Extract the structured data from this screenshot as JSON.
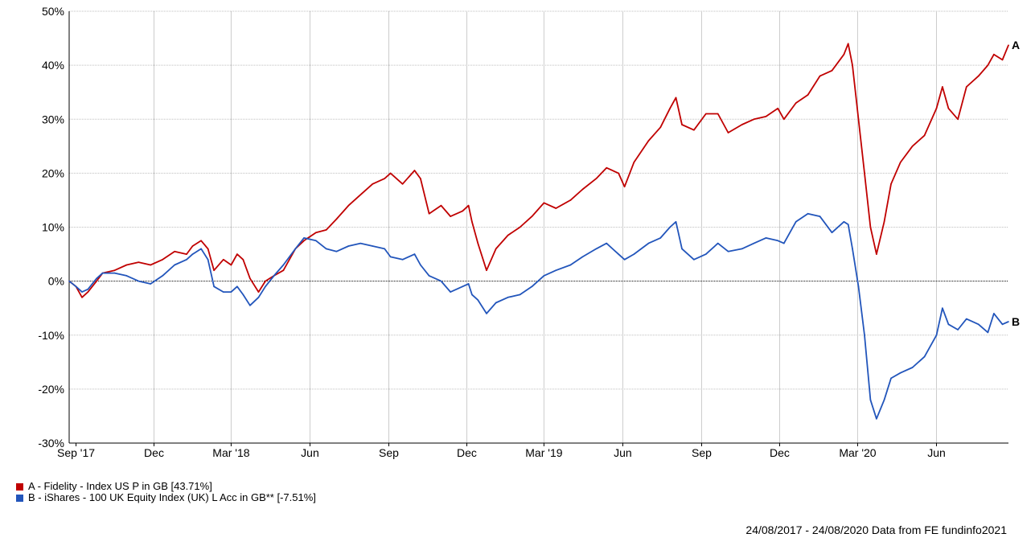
{
  "chart_data": {
    "type": "line",
    "title": "",
    "xlabel": "",
    "ylabel": "",
    "ylim": [
      -30,
      50
    ],
    "y_ticks": [
      50,
      40,
      30,
      20,
      10,
      0,
      -10,
      -20,
      -30
    ],
    "y_tick_labels": [
      "50%",
      "40%",
      "30%",
      "20%",
      "10%",
      "0%",
      "-10%",
      "-20%",
      "-30%"
    ],
    "x_range": [
      "2017-08-24",
      "2020-08-24"
    ],
    "x_ticks": [
      {
        "date": "2017-09-01",
        "label": "Sep '17"
      },
      {
        "date": "2017-12-01",
        "label": "Dec"
      },
      {
        "date": "2018-03-01",
        "label": "Mar '18"
      },
      {
        "date": "2018-06-01",
        "label": "Jun"
      },
      {
        "date": "2018-09-01",
        "label": "Sep"
      },
      {
        "date": "2018-12-01",
        "label": "Dec"
      },
      {
        "date": "2019-03-01",
        "label": "Mar '19"
      },
      {
        "date": "2019-06-01",
        "label": "Jun"
      },
      {
        "date": "2019-09-01",
        "label": "Sep"
      },
      {
        "date": "2019-12-01",
        "label": "Dec"
      },
      {
        "date": "2020-03-01",
        "label": "Mar '20"
      },
      {
        "date": "2020-06-01",
        "label": "Jun"
      }
    ],
    "grid": true,
    "zero_line": true,
    "series": [
      {
        "name": "A - Fidelity - Index US P in GB [43.71%]",
        "end_label": "A",
        "color": "#c00000",
        "points": [
          [
            "2017-08-24",
            0
          ],
          [
            "2017-09-01",
            -1
          ],
          [
            "2017-09-08",
            -3
          ],
          [
            "2017-09-15",
            -2
          ],
          [
            "2017-09-25",
            0
          ],
          [
            "2017-10-02",
            1.5
          ],
          [
            "2017-10-16",
            2
          ],
          [
            "2017-10-30",
            3
          ],
          [
            "2017-11-13",
            3.5
          ],
          [
            "2017-11-27",
            3
          ],
          [
            "2017-12-11",
            4
          ],
          [
            "2017-12-25",
            5.5
          ],
          [
            "2018-01-08",
            5
          ],
          [
            "2018-01-15",
            6.5
          ],
          [
            "2018-01-25",
            7.5
          ],
          [
            "2018-02-02",
            6
          ],
          [
            "2018-02-09",
            2
          ],
          [
            "2018-02-20",
            4
          ],
          [
            "2018-03-01",
            3
          ],
          [
            "2018-03-08",
            5
          ],
          [
            "2018-03-15",
            4
          ],
          [
            "2018-03-23",
            0.5
          ],
          [
            "2018-04-02",
            -2
          ],
          [
            "2018-04-10",
            0
          ],
          [
            "2018-04-20",
            1
          ],
          [
            "2018-05-01",
            2
          ],
          [
            "2018-05-15",
            6
          ],
          [
            "2018-05-25",
            7.5
          ],
          [
            "2018-06-08",
            9
          ],
          [
            "2018-06-20",
            9.5
          ],
          [
            "2018-07-02",
            11.5
          ],
          [
            "2018-07-16",
            14
          ],
          [
            "2018-07-30",
            16
          ],
          [
            "2018-08-13",
            18
          ],
          [
            "2018-08-27",
            19
          ],
          [
            "2018-09-03",
            20
          ],
          [
            "2018-09-17",
            18
          ],
          [
            "2018-10-01",
            20.5
          ],
          [
            "2018-10-08",
            19
          ],
          [
            "2018-10-18",
            12.5
          ],
          [
            "2018-11-01",
            14
          ],
          [
            "2018-11-12",
            12
          ],
          [
            "2018-11-26",
            13
          ],
          [
            "2018-12-03",
            14
          ],
          [
            "2018-12-07",
            11
          ],
          [
            "2018-12-14",
            7
          ],
          [
            "2018-12-24",
            2
          ],
          [
            "2019-01-04",
            6
          ],
          [
            "2019-01-18",
            8.5
          ],
          [
            "2019-02-01",
            10
          ],
          [
            "2019-02-15",
            12
          ],
          [
            "2019-03-01",
            14.5
          ],
          [
            "2019-03-15",
            13.5
          ],
          [
            "2019-04-01",
            15
          ],
          [
            "2019-04-15",
            17
          ],
          [
            "2019-05-01",
            19
          ],
          [
            "2019-05-13",
            21
          ],
          [
            "2019-05-27",
            20
          ],
          [
            "2019-06-03",
            17.5
          ],
          [
            "2019-06-14",
            22
          ],
          [
            "2019-07-01",
            26
          ],
          [
            "2019-07-15",
            28.5
          ],
          [
            "2019-07-26",
            32
          ],
          [
            "2019-08-02",
            34
          ],
          [
            "2019-08-09",
            29
          ],
          [
            "2019-08-23",
            28
          ],
          [
            "2019-09-06",
            31
          ],
          [
            "2019-09-20",
            31
          ],
          [
            "2019-10-02",
            27.5
          ],
          [
            "2019-10-18",
            29
          ],
          [
            "2019-11-01",
            30
          ],
          [
            "2019-11-15",
            30.5
          ],
          [
            "2019-11-29",
            32
          ],
          [
            "2019-12-06",
            30
          ],
          [
            "2019-12-20",
            33
          ],
          [
            "2020-01-03",
            34.5
          ],
          [
            "2020-01-17",
            38
          ],
          [
            "2020-01-31",
            39
          ],
          [
            "2020-02-14",
            42
          ],
          [
            "2020-02-19",
            44
          ],
          [
            "2020-02-24",
            40
          ],
          [
            "2020-03-02",
            30
          ],
          [
            "2020-03-09",
            20
          ],
          [
            "2020-03-16",
            10
          ],
          [
            "2020-03-23",
            5
          ],
          [
            "2020-04-01",
            11
          ],
          [
            "2020-04-09",
            18
          ],
          [
            "2020-04-20",
            22
          ],
          [
            "2020-05-04",
            25
          ],
          [
            "2020-05-18",
            27
          ],
          [
            "2020-06-01",
            32
          ],
          [
            "2020-06-08",
            36
          ],
          [
            "2020-06-15",
            32
          ],
          [
            "2020-06-26",
            30
          ],
          [
            "2020-07-06",
            36
          ],
          [
            "2020-07-20",
            38
          ],
          [
            "2020-07-31",
            40
          ],
          [
            "2020-08-07",
            42
          ],
          [
            "2020-08-17",
            41
          ],
          [
            "2020-08-24",
            43.71
          ]
        ]
      },
      {
        "name": "B - iShares - 100 UK Equity Index (UK) L Acc in GB** [-7.51%]",
        "end_label": "B",
        "color": "#2255bb",
        "points": [
          [
            "2017-08-24",
            0
          ],
          [
            "2017-09-01",
            -1
          ],
          [
            "2017-09-08",
            -2
          ],
          [
            "2017-09-15",
            -1.5
          ],
          [
            "2017-09-25",
            0.5
          ],
          [
            "2017-10-02",
            1.5
          ],
          [
            "2017-10-16",
            1.5
          ],
          [
            "2017-10-30",
            1
          ],
          [
            "2017-11-13",
            0
          ],
          [
            "2017-11-27",
            -0.5
          ],
          [
            "2017-12-11",
            1
          ],
          [
            "2017-12-25",
            3
          ],
          [
            "2018-01-08",
            4
          ],
          [
            "2018-01-15",
            5
          ],
          [
            "2018-01-25",
            6
          ],
          [
            "2018-02-02",
            4
          ],
          [
            "2018-02-09",
            -1
          ],
          [
            "2018-02-20",
            -2
          ],
          [
            "2018-03-01",
            -2
          ],
          [
            "2018-03-08",
            -1
          ],
          [
            "2018-03-15",
            -2.5
          ],
          [
            "2018-03-23",
            -4.5
          ],
          [
            "2018-04-02",
            -3
          ],
          [
            "2018-04-10",
            -1
          ],
          [
            "2018-04-20",
            1
          ],
          [
            "2018-05-01",
            3
          ],
          [
            "2018-05-15",
            6
          ],
          [
            "2018-05-25",
            8
          ],
          [
            "2018-06-08",
            7.5
          ],
          [
            "2018-06-20",
            6
          ],
          [
            "2018-07-02",
            5.5
          ],
          [
            "2018-07-16",
            6.5
          ],
          [
            "2018-07-30",
            7
          ],
          [
            "2018-08-13",
            6.5
          ],
          [
            "2018-08-27",
            6
          ],
          [
            "2018-09-03",
            4.5
          ],
          [
            "2018-09-17",
            4
          ],
          [
            "2018-10-01",
            5
          ],
          [
            "2018-10-08",
            3
          ],
          [
            "2018-10-18",
            1
          ],
          [
            "2018-11-01",
            0
          ],
          [
            "2018-11-12",
            -2
          ],
          [
            "2018-11-26",
            -1
          ],
          [
            "2018-12-03",
            -0.5
          ],
          [
            "2018-12-07",
            -2.5
          ],
          [
            "2018-12-14",
            -3.5
          ],
          [
            "2018-12-24",
            -6
          ],
          [
            "2019-01-04",
            -4
          ],
          [
            "2019-01-18",
            -3
          ],
          [
            "2019-02-01",
            -2.5
          ],
          [
            "2019-02-15",
            -1
          ],
          [
            "2019-03-01",
            1
          ],
          [
            "2019-03-15",
            2
          ],
          [
            "2019-04-01",
            3
          ],
          [
            "2019-04-15",
            4.5
          ],
          [
            "2019-05-01",
            6
          ],
          [
            "2019-05-13",
            7
          ],
          [
            "2019-05-27",
            5
          ],
          [
            "2019-06-03",
            4
          ],
          [
            "2019-06-14",
            5
          ],
          [
            "2019-07-01",
            7
          ],
          [
            "2019-07-15",
            8
          ],
          [
            "2019-07-26",
            10
          ],
          [
            "2019-08-02",
            11
          ],
          [
            "2019-08-09",
            6
          ],
          [
            "2019-08-23",
            4
          ],
          [
            "2019-09-06",
            5
          ],
          [
            "2019-09-20",
            7
          ],
          [
            "2019-10-02",
            5.5
          ],
          [
            "2019-10-18",
            6
          ],
          [
            "2019-11-01",
            7
          ],
          [
            "2019-11-15",
            8
          ],
          [
            "2019-11-29",
            7.5
          ],
          [
            "2019-12-06",
            7
          ],
          [
            "2019-12-20",
            11
          ],
          [
            "2020-01-03",
            12.5
          ],
          [
            "2020-01-17",
            12
          ],
          [
            "2020-01-31",
            9
          ],
          [
            "2020-02-14",
            11
          ],
          [
            "2020-02-19",
            10.5
          ],
          [
            "2020-02-24",
            6
          ],
          [
            "2020-03-02",
            -1
          ],
          [
            "2020-03-09",
            -10
          ],
          [
            "2020-03-16",
            -22
          ],
          [
            "2020-03-23",
            -25.5
          ],
          [
            "2020-04-01",
            -22
          ],
          [
            "2020-04-09",
            -18
          ],
          [
            "2020-04-20",
            -17
          ],
          [
            "2020-05-04",
            -16
          ],
          [
            "2020-05-18",
            -14
          ],
          [
            "2020-06-01",
            -10
          ],
          [
            "2020-06-08",
            -5
          ],
          [
            "2020-06-15",
            -8
          ],
          [
            "2020-06-26",
            -9
          ],
          [
            "2020-07-06",
            -7
          ],
          [
            "2020-07-20",
            -8
          ],
          [
            "2020-07-31",
            -9.5
          ],
          [
            "2020-08-07",
            -6
          ],
          [
            "2020-08-17",
            -8
          ],
          [
            "2020-08-24",
            -7.51
          ]
        ]
      }
    ]
  },
  "legend": [
    {
      "label": "A - Fidelity - Index US P in GB [43.71%]",
      "color": "#c00000"
    },
    {
      "label": "B - iShares - 100 UK Equity Index (UK) L Acc in GB** [-7.51%]",
      "color": "#2255bb"
    }
  ],
  "footer": "24/08/2017 - 24/08/2020 Data from FE fundinfo2021"
}
